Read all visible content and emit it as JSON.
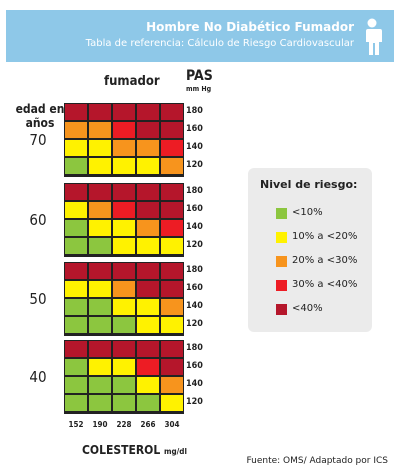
{
  "header": {
    "title": "Hombre No Diabético Fumador",
    "subtitle": "Tabla de referencia: Cálculo de Riesgo Cardiovascular",
    "icon": "person-icon",
    "color": "#8ec8e8"
  },
  "chart_data": {
    "type": "heatmap",
    "column_title": "fumador",
    "row_title": "edad en años",
    "bp_title": "PAS",
    "bp_unit": "mm Hg",
    "cholesterol": {
      "title": "COLESTEROL",
      "unit": "mg/dl",
      "values": [
        "152",
        "190",
        "228",
        "266",
        "304"
      ]
    },
    "blood_pressure": [
      "180",
      "160",
      "140",
      "120"
    ],
    "legend_title": "Nivel de riesgo:",
    "levels": [
      {
        "key": "g",
        "label": "<10%",
        "color": "#8cc63f"
      },
      {
        "key": "y",
        "label": "10% a <20%",
        "color": "#fff200"
      },
      {
        "key": "o",
        "label": "20% a <30%",
        "color": "#f7941d"
      },
      {
        "key": "r",
        "label": "30% a <40%",
        "color": "#ed1c24"
      },
      {
        "key": "d",
        "label": "<40%",
        "color": "#b5162b"
      }
    ],
    "ages": [
      {
        "age": "70",
        "grid": [
          [
            "d",
            "d",
            "d",
            "d",
            "d"
          ],
          [
            "o",
            "o",
            "r",
            "d",
            "d"
          ],
          [
            "y",
            "y",
            "o",
            "o",
            "r"
          ],
          [
            "g",
            "y",
            "y",
            "y",
            "o"
          ]
        ]
      },
      {
        "age": "60",
        "grid": [
          [
            "d",
            "d",
            "d",
            "d",
            "d"
          ],
          [
            "y",
            "o",
            "r",
            "d",
            "d"
          ],
          [
            "g",
            "y",
            "y",
            "o",
            "r"
          ],
          [
            "g",
            "g",
            "y",
            "y",
            "y"
          ]
        ]
      },
      {
        "age": "50",
        "grid": [
          [
            "d",
            "d",
            "d",
            "d",
            "d"
          ],
          [
            "y",
            "y",
            "o",
            "d",
            "d"
          ],
          [
            "g",
            "g",
            "y",
            "y",
            "o"
          ],
          [
            "g",
            "g",
            "g",
            "y",
            "y"
          ]
        ]
      },
      {
        "age": "40",
        "grid": [
          [
            "d",
            "d",
            "d",
            "d",
            "d"
          ],
          [
            "g",
            "y",
            "y",
            "r",
            "d"
          ],
          [
            "g",
            "g",
            "g",
            "y",
            "o"
          ],
          [
            "g",
            "g",
            "g",
            "g",
            "y"
          ]
        ]
      }
    ]
  },
  "source": "Fuente:  OMS/ Adaptado por ICS"
}
